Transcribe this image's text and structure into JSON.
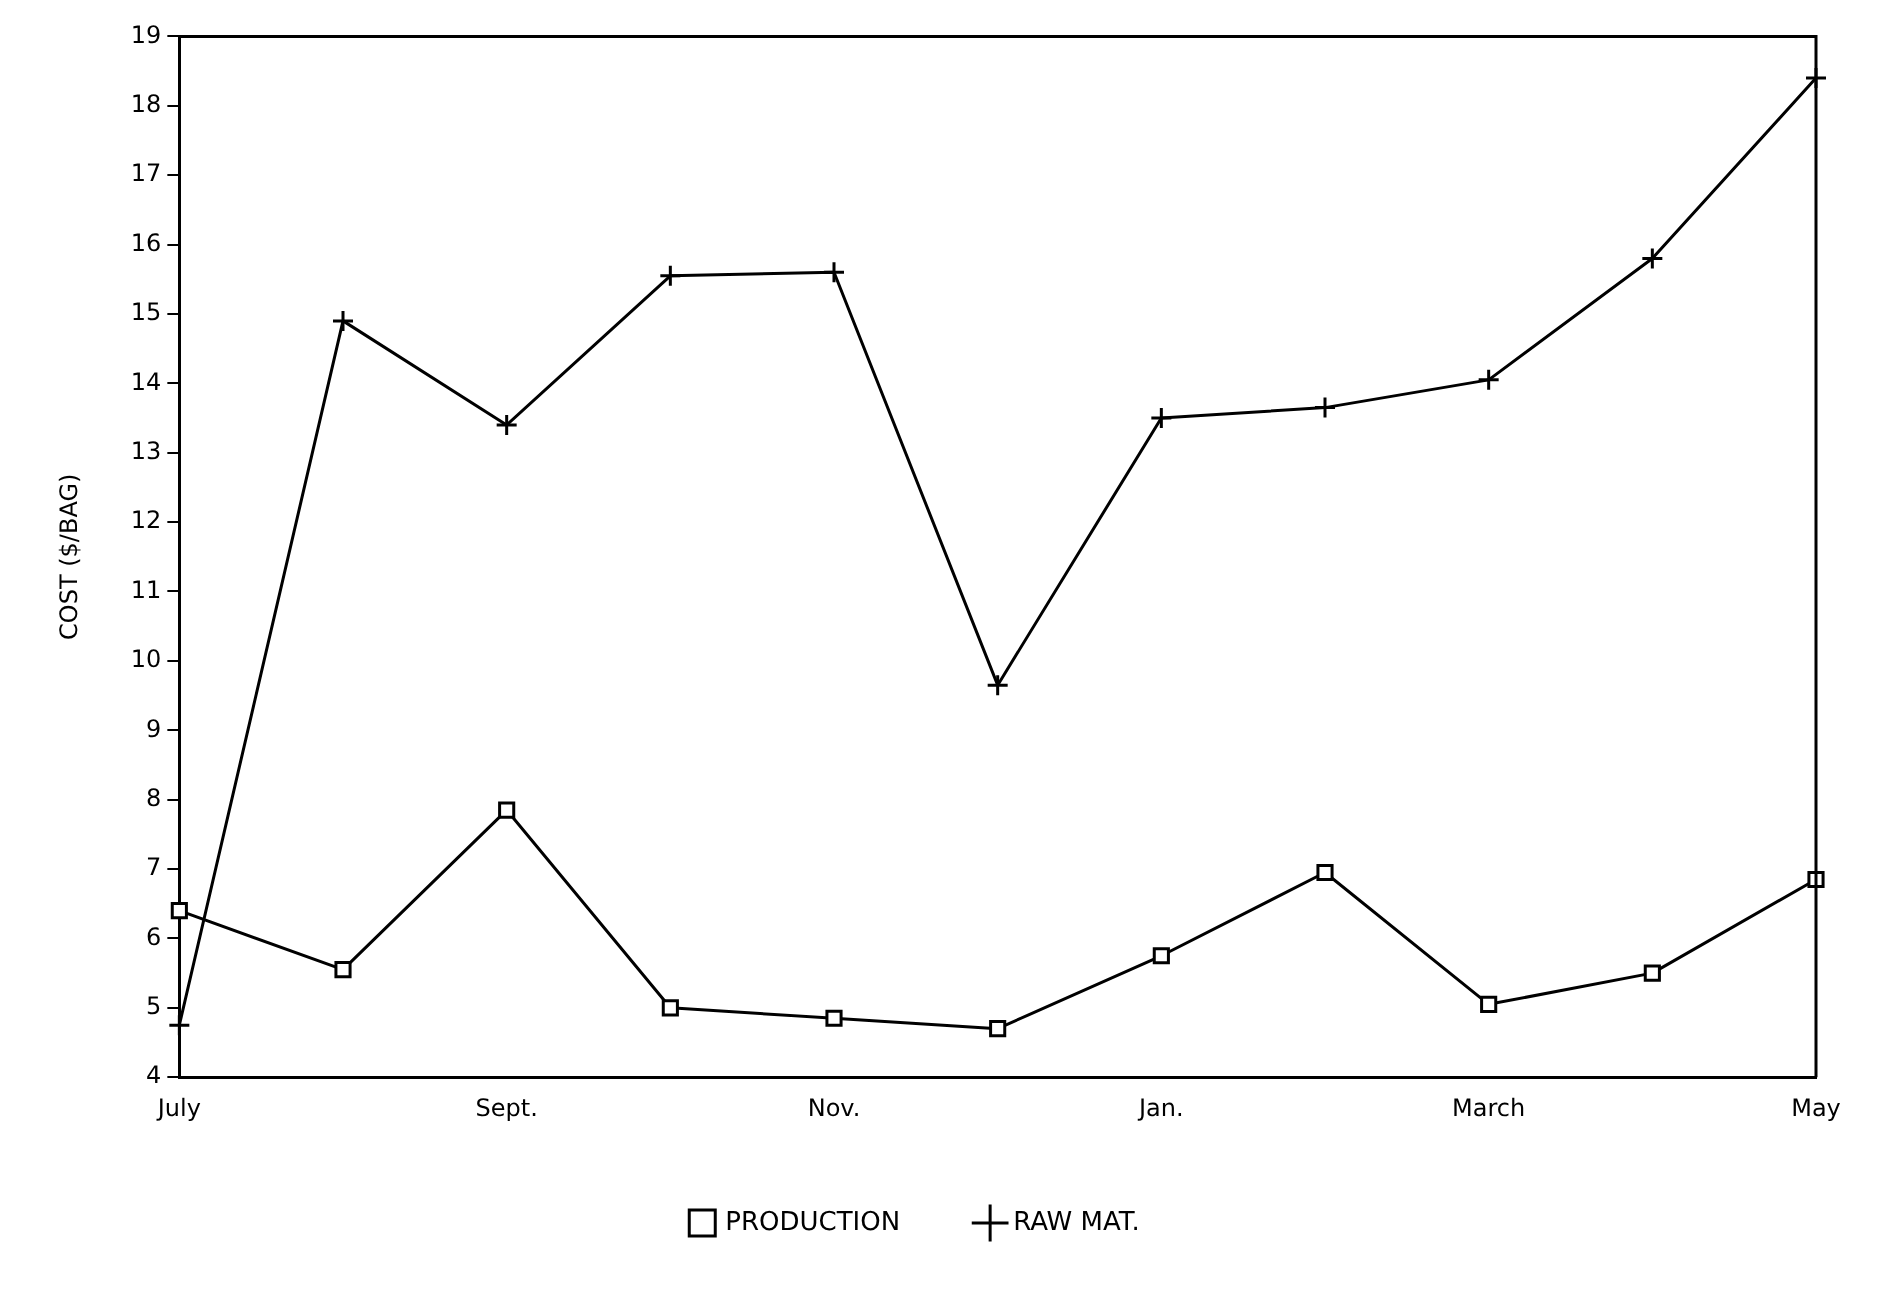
{
  "chart_data": {
    "type": "line",
    "ylabel": "COST ($/BAG)",
    "categories": [
      "July",
      null,
      "Sept.",
      null,
      "Nov.",
      null,
      "Jan.",
      null,
      "March",
      null,
      "May"
    ],
    "series": [
      {
        "name": "PRODUCTION",
        "color": "#000000",
        "marker": "square",
        "values": [
          6.4,
          5.55,
          7.85,
          5.0,
          4.85,
          4.7,
          5.75,
          6.95,
          5.05,
          5.5,
          6.85
        ]
      },
      {
        "name": "RAW MAT.",
        "color": "#000000",
        "marker": "cross",
        "values": [
          4.75,
          14.9,
          13.4,
          15.55,
          15.6,
          9.65,
          13.5,
          13.65,
          14.05,
          15.8,
          18.4
        ]
      }
    ],
    "ylim": [
      4,
      19
    ],
    "yticks": [
      4,
      5,
      6,
      7,
      8,
      9,
      10,
      11,
      12,
      13,
      14,
      15,
      16,
      17,
      18,
      19
    ],
    "grid": false,
    "legend": "bottom",
    "line_style": "solid"
  }
}
